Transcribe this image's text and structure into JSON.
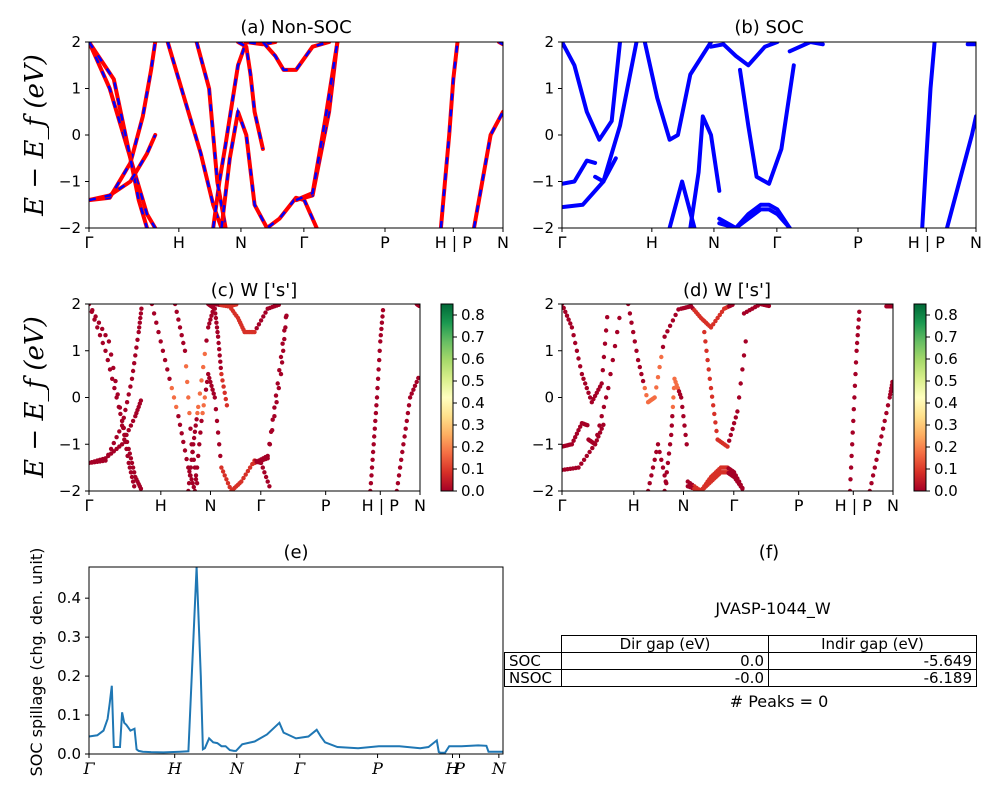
{
  "panels": {
    "a": {
      "title": "(a) Non-SOC",
      "ylabel": "E − E_f (eV)",
      "ylim": [
        -2,
        2
      ],
      "yticks": [
        "2",
        "1",
        "0",
        "−1",
        "−2"
      ],
      "xticks": [
        "Γ",
        "H",
        "N",
        "Γ",
        "P",
        "H | P",
        "N"
      ]
    },
    "b": {
      "title": "(b) SOC",
      "ylim": [
        -2,
        2
      ],
      "yticks": [
        "2",
        "1",
        "0",
        "−1",
        "−2"
      ],
      "xticks": [
        "Γ",
        "H",
        "N",
        "Γ",
        "P",
        "H | P",
        "N"
      ]
    },
    "c": {
      "title": "(c)  W ['s']",
      "ylabel": "E − E_f (eV)",
      "ylim": [
        -2,
        2
      ],
      "yticks": [
        "2",
        "1",
        "0",
        "−1",
        "−2"
      ],
      "xticks": [
        "Γ",
        "H",
        "N",
        "Γ",
        "P",
        "H | P",
        "N"
      ],
      "colorbar_ticks": [
        "0.8",
        "0.7",
        "0.6",
        "0.5",
        "0.4",
        "0.3",
        "0.2",
        "0.1",
        "0.0"
      ]
    },
    "d": {
      "title": "(d) W ['s']",
      "ylim": [
        -2,
        2
      ],
      "yticks": [
        "2",
        "1",
        "0",
        "−1",
        "−2"
      ],
      "xticks": [
        "Γ",
        "H",
        "N",
        "Γ",
        "P",
        "H | P",
        "N"
      ],
      "colorbar_ticks": [
        "0.8",
        "0.7",
        "0.6",
        "0.5",
        "0.4",
        "0.3",
        "0.2",
        "0.1",
        "0.0"
      ]
    },
    "e": {
      "title": "(e)",
      "ylabel": "SOC spillage (chg. den. unit)",
      "yticks": [
        "0.4",
        "0.3",
        "0.2",
        "0.1",
        "0.0"
      ],
      "xticks": [
        "Γ",
        "H",
        "N",
        "Γ",
        "P",
        "H",
        "P",
        "N"
      ]
    },
    "f": {
      "title": "(f)",
      "material": "JVASP-1044_W",
      "table": {
        "headers": [
          "",
          "Dir gap (eV)",
          "Indir gap (eV)"
        ],
        "rows": [
          [
            "SOC",
            "0.0",
            "-5.649"
          ],
          [
            "NSOC",
            "-0.0",
            "-6.189"
          ]
        ]
      },
      "peaks": "# Peaks = 0"
    }
  },
  "colors": {
    "nonsoc_line": "#ff0000",
    "nonsoc_dash": "#0000ff",
    "soc_line": "#0000ff",
    "spillage_line": "#1f77b4",
    "colormap": "RdYlGn"
  },
  "chart_data": [
    {
      "type": "line",
      "title": "(a) Non-SOC",
      "ylabel": "E − E_f (eV)",
      "ylim": [
        -2,
        2
      ],
      "x_ticks": [
        "Γ",
        "H",
        "N",
        "Γ",
        "P",
        "H | P",
        "N"
      ],
      "x_tick_positions": [
        0,
        0.217,
        0.367,
        0.519,
        0.715,
        0.88,
        1.0
      ],
      "series": [
        {
          "x": [
            0.0,
            0.05,
            0.1,
            0.13,
            0.15,
            0.16
          ],
          "y": [
            -1.4,
            -1.35,
            -0.6,
            0.4,
            1.4,
            2.0
          ]
        },
        {
          "x": [
            0.0,
            0.05,
            0.09,
            0.12,
            0.14,
            0.16
          ],
          "y": [
            2.0,
            1.0,
            -0.2,
            -1.1,
            -1.7,
            -2.0
          ]
        },
        {
          "x": [
            0.0,
            0.06,
            0.1,
            0.12,
            0.14
          ],
          "y": [
            2.0,
            1.2,
            -0.5,
            -1.4,
            -2.0
          ]
        },
        {
          "x": [
            0.0,
            0.05,
            0.1,
            0.14,
            0.16
          ],
          "y": [
            -1.4,
            -1.3,
            -1.0,
            -0.4,
            0.0
          ]
        },
        {
          "x": [
            0.19,
            0.23,
            0.27,
            0.3,
            0.32
          ],
          "y": [
            2.0,
            0.8,
            -0.4,
            -1.5,
            -2.0
          ]
        },
        {
          "x": [
            0.3,
            0.315,
            0.33,
            0.36,
            0.38,
            0.42,
            0.45
          ],
          "y": [
            -2.0,
            -1.0,
            -0.2,
            1.5,
            2.0,
            1.95,
            2.0
          ]
        },
        {
          "x": [
            0.26,
            0.29,
            0.31,
            0.33
          ],
          "y": [
            2.0,
            1.0,
            -1.0,
            -2.0
          ]
        },
        {
          "x": [
            0.32,
            0.34,
            0.36,
            0.38,
            0.4,
            0.43,
            0.46,
            0.5,
            0.52,
            0.55
          ],
          "y": [
            -2.0,
            -0.5,
            0.5,
            0.0,
            -1.5,
            -2.0,
            -1.8,
            -1.35,
            -1.4,
            -2.0
          ]
        },
        {
          "x": [
            0.36,
            0.38,
            0.39,
            0.4,
            0.42
          ],
          "y": [
            2.0,
            1.9,
            1.3,
            0.5,
            -0.3
          ]
        },
        {
          "x": [
            0.42,
            0.45,
            0.47,
            0.5,
            0.54,
            0.58
          ],
          "y": [
            2.0,
            1.7,
            1.4,
            1.4,
            1.9,
            2.0
          ]
        },
        {
          "x": [
            0.5,
            0.54,
            0.58,
            0.6
          ],
          "y": [
            -1.4,
            -1.3,
            0.5,
            2.0
          ]
        },
        {
          "x": [
            0.5,
            0.54,
            0.57,
            0.6
          ],
          "y": [
            -1.4,
            -1.25,
            0.3,
            2.0
          ]
        },
        {
          "x": [
            0.85,
            0.86,
            0.87,
            0.88,
            0.89
          ],
          "y": [
            -2.0,
            -1.0,
            0.0,
            1.2,
            2.0
          ]
        },
        {
          "x": [
            0.93,
            0.95,
            0.97,
            1.0
          ],
          "y": [
            -2.0,
            -1.0,
            0.0,
            0.5
          ]
        },
        {
          "x": [
            0.99,
            1.0
          ],
          "y": [
            2.0,
            1.95
          ]
        }
      ]
    },
    {
      "type": "line",
      "title": "(b) SOC",
      "ylim": [
        -2,
        2
      ],
      "x_ticks": [
        "Γ",
        "H",
        "N",
        "Γ",
        "P",
        "H | P",
        "N"
      ],
      "series": [
        {
          "x": [
            0.0,
            0.03,
            0.06,
            0.09,
            0.12,
            0.14
          ],
          "y": [
            2.0,
            1.5,
            0.5,
            -0.1,
            0.3,
            2.0
          ]
        },
        {
          "x": [
            0.0,
            0.03,
            0.06,
            0.08
          ],
          "y": [
            -1.05,
            -1.0,
            -0.55,
            -0.6
          ]
        },
        {
          "x": [
            0.0,
            0.05,
            0.1,
            0.13
          ],
          "y": [
            -1.55,
            -1.5,
            -1.0,
            -0.5
          ]
        },
        {
          "x": [
            0.08,
            0.1,
            0.14,
            0.18
          ],
          "y": [
            -0.9,
            -1.0,
            0.2,
            2.0
          ]
        },
        {
          "x": [
            0.2,
            0.23,
            0.26,
            0.28,
            0.31,
            0.36
          ],
          "y": [
            2.0,
            0.8,
            -0.1,
            0.0,
            1.3,
            2.0
          ]
        },
        {
          "x": [
            0.31,
            0.33,
            0.34,
            0.36,
            0.38
          ],
          "y": [
            -2.0,
            -0.8,
            0.4,
            0.0,
            -1.2
          ]
        },
        {
          "x": [
            0.26,
            0.29,
            0.32
          ],
          "y": [
            -2.0,
            -1.0,
            -2.0
          ]
        },
        {
          "x": [
            0.38,
            0.42,
            0.45,
            0.48,
            0.5,
            0.52,
            0.55
          ],
          "y": [
            -1.8,
            -2.0,
            -1.7,
            -1.5,
            -1.5,
            -1.6,
            -2.0
          ]
        },
        {
          "x": [
            0.38,
            0.42,
            0.45,
            0.48,
            0.5,
            0.52,
            0.55
          ],
          "y": [
            -1.9,
            -2.0,
            -1.8,
            -1.6,
            -1.6,
            -1.7,
            -2.0
          ]
        },
        {
          "x": [
            0.43,
            0.45,
            0.47,
            0.5,
            0.53,
            0.56
          ],
          "y": [
            1.4,
            0.2,
            -0.9,
            -1.05,
            -0.3,
            1.5
          ]
        },
        {
          "x": [
            0.36,
            0.39,
            0.42,
            0.45,
            0.49,
            0.52
          ],
          "y": [
            1.9,
            1.95,
            1.7,
            1.5,
            1.9,
            2.0
          ]
        },
        {
          "x": [
            0.55,
            0.6,
            0.63
          ],
          "y": [
            1.8,
            2.0,
            1.95
          ]
        },
        {
          "x": [
            0.87,
            0.88,
            0.89,
            0.9
          ],
          "y": [
            -2.0,
            -0.5,
            1.0,
            2.0
          ]
        },
        {
          "x": [
            0.93,
            0.96,
            0.99,
            1.0
          ],
          "y": [
            -2.0,
            -1.0,
            0.0,
            0.4
          ]
        },
        {
          "x": [
            0.98,
            1.0
          ],
          "y": [
            1.95,
            1.95
          ]
        }
      ]
    },
    {
      "type": "scatter",
      "title": "(c)  W ['s']",
      "ylabel": "E − E_f (eV)",
      "ylim": [
        -2,
        2
      ],
      "colorbar": {
        "min": 0.0,
        "max": 0.85,
        "colormap": "RdYlGn"
      }
    },
    {
      "type": "scatter",
      "title": "(d) W ['s']",
      "ylim": [
        -2,
        2
      ],
      "colorbar": {
        "min": 0.0,
        "max": 0.85,
        "colormap": "RdYlGn"
      }
    },
    {
      "type": "line",
      "title": "(e)",
      "ylabel": "SOC spillage (chg. den. unit)",
      "ylim": [
        0,
        0.48
      ],
      "x_ticks": [
        "Γ",
        "H",
        "N",
        "Γ",
        "P",
        "H",
        "P",
        "N"
      ],
      "x": [
        0.0,
        0.02,
        0.035,
        0.045,
        0.05,
        0.055,
        0.06,
        0.07,
        0.075,
        0.08,
        0.085,
        0.09,
        0.1,
        0.11,
        0.115,
        0.12,
        0.13,
        0.15,
        0.18,
        0.22,
        0.24,
        0.26,
        0.27,
        0.275,
        0.28,
        0.29,
        0.3,
        0.31,
        0.32,
        0.33,
        0.34,
        0.35,
        0.355,
        0.37,
        0.4,
        0.43,
        0.46,
        0.47,
        0.48,
        0.5,
        0.53,
        0.55,
        0.56,
        0.57,
        0.6,
        0.65,
        0.7,
        0.75,
        0.8,
        0.82,
        0.84,
        0.845,
        0.85,
        0.86,
        0.87,
        0.9,
        0.94,
        0.96,
        0.965,
        0.97,
        1.0
      ],
      "values": [
        0.045,
        0.048,
        0.06,
        0.09,
        0.13,
        0.175,
        0.018,
        0.018,
        0.018,
        0.107,
        0.08,
        0.075,
        0.06,
        0.065,
        0.012,
        0.008,
        0.006,
        0.005,
        0.004,
        0.006,
        0.007,
        0.48,
        0.2,
        0.012,
        0.015,
        0.04,
        0.03,
        0.028,
        0.02,
        0.02,
        0.01,
        0.008,
        0.008,
        0.025,
        0.032,
        0.05,
        0.08,
        0.055,
        0.05,
        0.04,
        0.045,
        0.062,
        0.045,
        0.03,
        0.018,
        0.015,
        0.02,
        0.02,
        0.015,
        0.018,
        0.035,
        0.005,
        0.003,
        0.003,
        0.02,
        0.02,
        0.022,
        0.021,
        0.006,
        0.006,
        0.006
      ]
    },
    {
      "type": "table",
      "title": "(f)",
      "headers": [
        "",
        "Dir gap (eV)",
        "Indir gap (eV)"
      ],
      "rows": [
        [
          "SOC",
          "0.0",
          "-5.649"
        ],
        [
          "NSOC",
          "-0.0",
          "-6.189"
        ]
      ]
    }
  ]
}
